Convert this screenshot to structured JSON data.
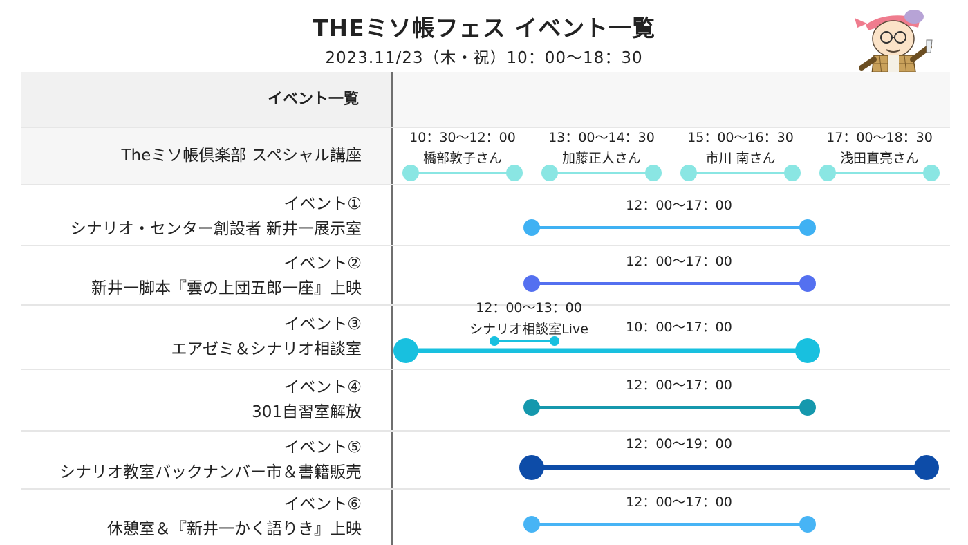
{
  "header": {
    "title": "THEミソ帳フェス イベント一覧",
    "subtitle": "2023.11/23（木・祝）10：00〜18：30"
  },
  "table": {
    "column_header": "イベント一覧"
  },
  "special_lecture": {
    "label": "Theミソ帳倶楽部 スペシャル講座",
    "color": "#8ae6e3",
    "sessions": [
      {
        "time": "10：30〜12：00",
        "speaker": "橋部敦子さん",
        "start": 10.5,
        "end": 12.0
      },
      {
        "time": "13：00〜14：30",
        "speaker": "加藤正人さん",
        "start": 13.0,
        "end": 14.5
      },
      {
        "time": "15：00〜16：30",
        "speaker": "市川 南さん",
        "start": 15.0,
        "end": 16.5
      },
      {
        "time": "17：00〜18：30",
        "speaker": "浅田直亮さん",
        "start": 17.0,
        "end": 18.5
      }
    ]
  },
  "events": [
    {
      "label_line1": "イベント①",
      "label_line2": "シナリオ・センター創設者 新井一展示室",
      "time": "12：00〜17：00",
      "start": 12,
      "end": 17,
      "color": "#3fb1f3",
      "emphasis": "normal"
    },
    {
      "label_line1": "イベント②",
      "label_line2": "新井一脚本『雲の上団五郎一座』上映",
      "time": "12：00〜17：00",
      "start": 12,
      "end": 17,
      "color": "#5470f0",
      "emphasis": "normal"
    },
    {
      "label_line1": "イベント③",
      "label_line2": "エアゼミ＆シナリオ相談室",
      "time": "10：00〜17：00",
      "start": 10,
      "end": 17,
      "color": "#18c0df",
      "emphasis": "large",
      "sub": {
        "time": "12：00〜13：00",
        "label": "シナリオ相談室Live",
        "start": 12,
        "end": 13
      }
    },
    {
      "label_line1": "イベント④",
      "label_line2": "301自習室解放",
      "time": "12：00〜17：00",
      "start": 12,
      "end": 17,
      "color": "#1598ad",
      "emphasis": "normal"
    },
    {
      "label_line1": "イベント⑤",
      "label_line2": "シナリオ教室バックナンバー市＆書籍販売",
      "time": "12：00〜19：00",
      "start": 12,
      "end": 19,
      "color": "#0d4ca8",
      "emphasis": "large"
    },
    {
      "label_line1": "イベント⑥",
      "label_line2": "休憩室＆『新井一かく語りき』上映",
      "time": "12：00〜17：00",
      "start": 12,
      "end": 17,
      "color": "#47b4f5",
      "emphasis": "normal"
    }
  ]
}
